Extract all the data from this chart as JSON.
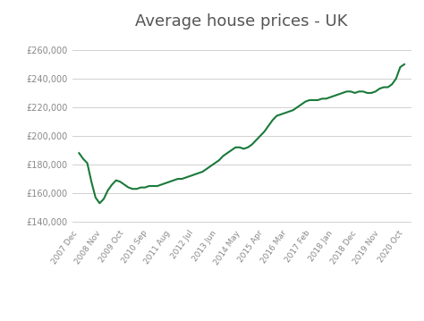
{
  "title": "Average house prices - UK",
  "title_fontsize": 13,
  "line_color": "#1a7a3a",
  "line_width": 1.5,
  "background_color": "#ffffff",
  "grid_color": "#d0d0d0",
  "ylim": [
    138000,
    268000
  ],
  "ytick_values": [
    140000,
    160000,
    180000,
    200000,
    220000,
    240000,
    260000
  ],
  "x_labels": [
    "2007 Dec",
    "2008 Nov",
    "2009 Oct",
    "2010 Sep",
    "2011 Aug",
    "2012 Jul",
    "2013 Jun",
    "2014 May",
    "2015 Apr",
    "2016 Mar",
    "2017 Feb",
    "2018 Jan",
    "2018 Dec",
    "2019 Nov",
    "2020 Oct"
  ],
  "values": [
    188000,
    184000,
    181000,
    168000,
    157000,
    153000,
    156000,
    162000,
    166000,
    169000,
    168000,
    166000,
    164000,
    163000,
    163000,
    164000,
    164000,
    165000,
    165000,
    165000,
    166000,
    167000,
    168000,
    169000,
    170000,
    170000,
    171000,
    172000,
    173000,
    174000,
    175000,
    177000,
    179000,
    181000,
    183000,
    186000,
    188000,
    190000,
    192000,
    192000,
    191000,
    192000,
    194000,
    197000,
    200000,
    203000,
    207000,
    211000,
    214000,
    215000,
    216000,
    217000,
    218000,
    220000,
    222000,
    224000,
    225000,
    225000,
    225000,
    226000,
    226000,
    227000,
    228000,
    229000,
    230000,
    231000,
    231000,
    230000,
    231000,
    231000,
    230000,
    230000,
    231000,
    233000,
    234000,
    234000,
    236000,
    240000,
    248000,
    250000
  ],
  "text_color": "#888888",
  "tick_label_fontsize": 6.5,
  "title_color": "#555555"
}
